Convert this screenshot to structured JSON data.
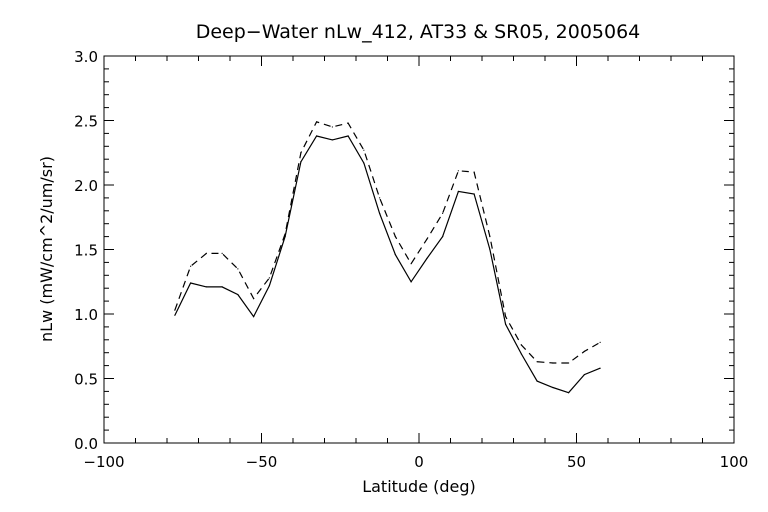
{
  "chart_data": {
    "type": "line",
    "title": "Deep−Water nLw_412, AT33 & SR05, 2005064",
    "xlabel": "Latitude (deg)",
    "ylabel": "nLw (mW/cm^2/um/sr)",
    "xlim": [
      -100,
      100
    ],
    "ylim": [
      0.0,
      3.0
    ],
    "x_ticks": [
      -100,
      -50,
      0,
      50,
      100
    ],
    "x_tick_labels": [
      "−100",
      "−50",
      "0",
      "50",
      "100"
    ],
    "y_ticks": [
      0.0,
      0.5,
      1.0,
      1.5,
      2.0,
      2.5,
      3.0
    ],
    "y_tick_labels": [
      "0.0",
      "0.5",
      "1.0",
      "1.5",
      "2.0",
      "2.5",
      "3.0"
    ],
    "grid": false,
    "legend": "none",
    "series": [
      {
        "style": "solid",
        "color": "#000000",
        "x": [
          -77.5,
          -72.5,
          -67.5,
          -62.5,
          -57.5,
          -52.5,
          -47.5,
          -42.5,
          -37.5,
          -32.5,
          -27.5,
          -22.5,
          -17.5,
          -12.5,
          -7.5,
          -2.5,
          2.5,
          7.5,
          12.5,
          17.5,
          22.5,
          27.5,
          32.5,
          37.5,
          42.5,
          47.5,
          52.5,
          57.5
        ],
        "y": [
          0.99,
          1.24,
          1.21,
          1.21,
          1.15,
          0.98,
          1.22,
          1.6,
          2.18,
          2.38,
          2.35,
          2.38,
          2.17,
          1.78,
          1.46,
          1.25,
          1.43,
          1.6,
          1.95,
          1.93,
          1.5,
          0.92,
          0.69,
          0.48,
          0.43,
          0.39,
          0.53,
          0.58
        ]
      },
      {
        "style": "dashed",
        "color": "#000000",
        "x": [
          -77.5,
          -72.5,
          -67.5,
          -62.5,
          -57.5,
          -52.5,
          -47.5,
          -42.5,
          -37.5,
          -32.5,
          -27.5,
          -22.5,
          -17.5,
          -12.5,
          -7.5,
          -2.5,
          2.5,
          7.5,
          12.5,
          17.5,
          22.5,
          27.5,
          32.5,
          37.5,
          42.5,
          47.5,
          52.5,
          57.5
        ],
        "y": [
          1.03,
          1.37,
          1.47,
          1.47,
          1.35,
          1.12,
          1.28,
          1.62,
          2.25,
          2.49,
          2.45,
          2.48,
          2.27,
          1.9,
          1.6,
          1.39,
          1.58,
          1.78,
          2.11,
          2.1,
          1.6,
          0.98,
          0.76,
          0.63,
          0.62,
          0.62,
          0.71,
          0.78
        ]
      }
    ]
  }
}
